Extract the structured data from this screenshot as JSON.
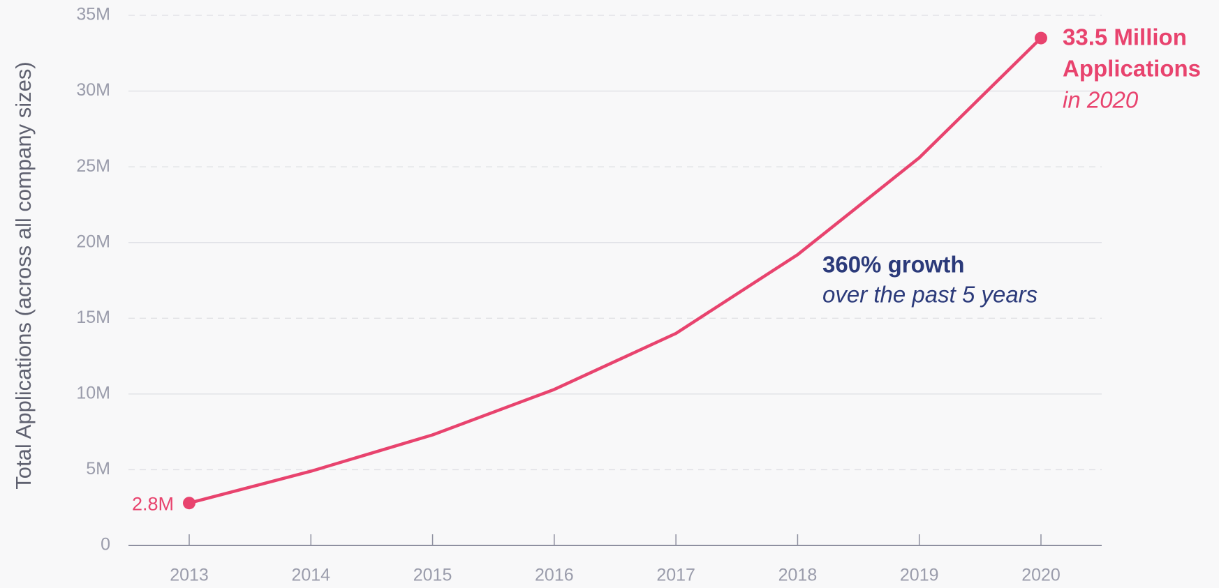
{
  "chart_data": {
    "type": "line",
    "y_axis_label": "Total Applications (across all company sizes)",
    "categories": [
      "2013",
      "2014",
      "2015",
      "2016",
      "2017",
      "2018",
      "2019",
      "2020"
    ],
    "series": [
      {
        "name": "Total Applications",
        "color": "#e8436e",
        "values": [
          2.8,
          4.9,
          7.3,
          10.3,
          14.0,
          19.2,
          25.6,
          33.5
        ],
        "value_labels": [
          "2.8M",
          null,
          null,
          null,
          null,
          null,
          null,
          null
        ]
      }
    ],
    "ylim": [
      0,
      35
    ],
    "yticks": [
      0,
      {
        "value": 5,
        "label": "5M"
      },
      {
        "value": 10,
        "label": "10M"
      },
      {
        "value": 15,
        "label": "15M"
      },
      {
        "value": 20,
        "label": "20M"
      },
      {
        "value": 25,
        "label": "25M"
      },
      {
        "value": 30,
        "label": "30M"
      },
      {
        "value": 35,
        "label": "35M"
      }
    ],
    "grid": true,
    "annotations": [
      {
        "lines": [
          "33.5 Million",
          "Applications",
          "in 2020"
        ],
        "color": "#e8436e"
      },
      {
        "lines": [
          "360% growth",
          "over the past 5 years"
        ],
        "color": "#2b3a7a"
      }
    ]
  }
}
